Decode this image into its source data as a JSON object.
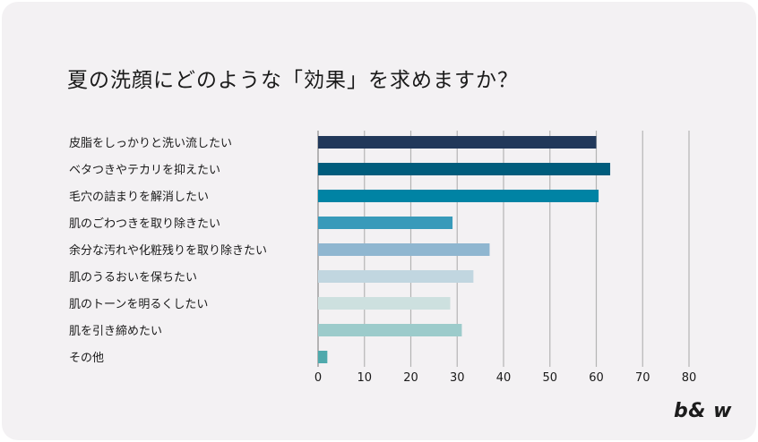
{
  "colors": {
    "background": "#f3f1f3",
    "grid": "#b4b4b4",
    "axis": "#8a8a8a",
    "text": "#1a1a1a"
  },
  "chart_data": {
    "type": "bar",
    "orientation": "horizontal",
    "title": "夏の洗顔にどのような「効果」を求めますか？",
    "categories": [
      "皮脂をしっかりと洗い流したい",
      "ベタつきやテカリを抑えたい",
      "毛穴の詰まりを解消したい",
      "肌のごわつきを取り除きたい",
      "余分な汚れや化粧残りを取り除きたい",
      "肌のうるおいを保ちたい",
      "肌のトーンを明るくしたい",
      "肌を引き締めたい",
      "その他"
    ],
    "values": [
      60,
      63,
      60.5,
      29,
      37,
      33.5,
      28.5,
      31,
      2
    ],
    "bar_colors": [
      "#21385a",
      "#005c7c",
      "#0083a4",
      "#389aba",
      "#8fb6d0",
      "#c1d6e0",
      "#cde0df",
      "#9ccbcb",
      "#4fa9ac"
    ],
    "xlim": [
      0,
      80
    ],
    "xticks": [
      "0",
      "10",
      "20",
      "30",
      "40",
      "50",
      "60",
      "70",
      "80"
    ],
    "xlabel": "",
    "ylabel": "",
    "grid": true
  },
  "brand": "b& w"
}
